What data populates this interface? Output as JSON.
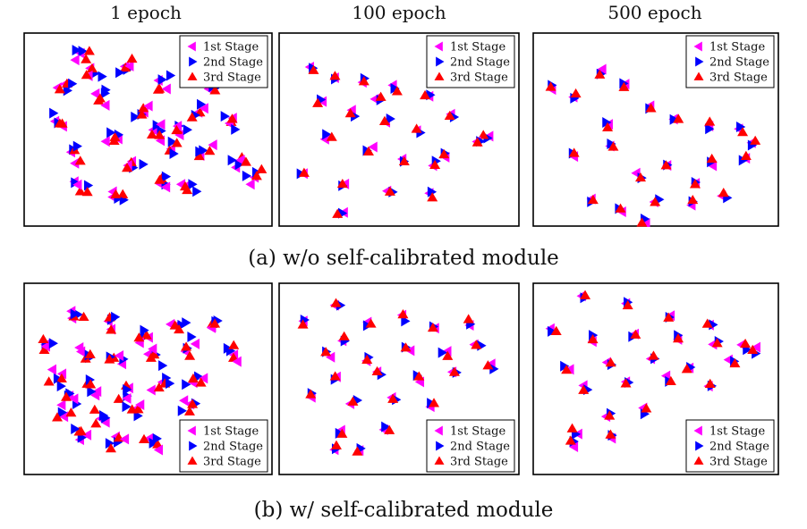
{
  "column_titles": [
    "1 epoch",
    "100 epoch",
    "500 epoch"
  ],
  "captions": {
    "a": "(a) w/o self-calibrated module",
    "b": "(b) w/ self-calibrated module"
  },
  "legend": {
    "stages": [
      "1st Stage",
      "2nd Stage",
      "3rd Stage"
    ],
    "colors": [
      "#ff00ff",
      "#0000ff",
      "#ff0000"
    ],
    "markers": [
      "triangle-left",
      "triangle-right",
      "triangle-up"
    ]
  },
  "chart_data": [
    {
      "type": "scatter",
      "row": "a",
      "epoch": "1 epoch",
      "spread": 6,
      "seed": 11,
      "legend_position": "top-right",
      "clusters": [
        [
          60,
          20
        ],
        [
          110,
          35
        ],
        [
          150,
          55
        ],
        [
          80,
          70
        ],
        [
          130,
          90
        ],
        [
          175,
          110
        ],
        [
          200,
          140
        ],
        [
          240,
          150
        ],
        [
          95,
          120
        ],
        [
          150,
          175
        ],
        [
          55,
          180
        ],
        [
          210,
          60
        ],
        [
          30,
          100
        ],
        [
          45,
          140
        ],
        [
          120,
          150
        ],
        [
          185,
          185
        ],
        [
          70,
          40
        ],
        [
          230,
          100
        ],
        [
          160,
          130
        ],
        [
          100,
          190
        ],
        [
          260,
          165
        ],
        [
          35,
          60
        ],
        [
          140,
          110
        ],
        [
          195,
          85
        ]
      ]
    },
    {
      "type": "scatter",
      "row": "a",
      "epoch": "100 epoch",
      "spread": 4,
      "seed": 23,
      "legend_position": "top-right",
      "clusters": [
        [
          30,
          35
        ],
        [
          60,
          45
        ],
        [
          95,
          50
        ],
        [
          130,
          60
        ],
        [
          170,
          70
        ],
        [
          40,
          75
        ],
        [
          80,
          90
        ],
        [
          120,
          100
        ],
        [
          160,
          110
        ],
        [
          200,
          95
        ],
        [
          50,
          120
        ],
        [
          100,
          135
        ],
        [
          140,
          145
        ],
        [
          180,
          150
        ],
        [
          240,
          120
        ],
        [
          20,
          160
        ],
        [
          70,
          175
        ],
        [
          125,
          185
        ],
        [
          175,
          190
        ],
        [
          65,
          210
        ],
        [
          230,
          125
        ],
        [
          110,
          70
        ],
        [
          190,
          140
        ]
      ]
    },
    {
      "type": "scatter",
      "row": "a",
      "epoch": "500 epoch",
      "spread": 4,
      "seed": 37,
      "legend_position": "top-right",
      "clusters": [
        [
          15,
          60
        ],
        [
          40,
          70
        ],
        [
          70,
          40
        ],
        [
          100,
          55
        ],
        [
          130,
          80
        ],
        [
          160,
          95
        ],
        [
          200,
          105
        ],
        [
          235,
          110
        ],
        [
          250,
          125
        ],
        [
          40,
          140
        ],
        [
          85,
          130
        ],
        [
          115,
          165
        ],
        [
          150,
          150
        ],
        [
          185,
          175
        ],
        [
          60,
          195
        ],
        [
          95,
          210
        ],
        [
          135,
          195
        ],
        [
          175,
          200
        ],
        [
          215,
          190
        ],
        [
          120,
          220
        ],
        [
          240,
          145
        ],
        [
          80,
          105
        ],
        [
          200,
          150
        ]
      ]
    },
    {
      "type": "scatter",
      "row": "b",
      "epoch": "1 epoch",
      "spread": 6,
      "seed": 51,
      "legend_position": "bottom-right",
      "clusters": [
        [
          50,
          30
        ],
        [
          90,
          40
        ],
        [
          130,
          55
        ],
        [
          170,
          50
        ],
        [
          210,
          45
        ],
        [
          20,
          70
        ],
        [
          60,
          80
        ],
        [
          100,
          90
        ],
        [
          140,
          85
        ],
        [
          180,
          70
        ],
        [
          230,
          80
        ],
        [
          30,
          110
        ],
        [
          70,
          120
        ],
        [
          110,
          125
        ],
        [
          150,
          115
        ],
        [
          190,
          110
        ],
        [
          40,
          150
        ],
        [
          80,
          160
        ],
        [
          120,
          150
        ],
        [
          60,
          180
        ],
        [
          100,
          185
        ],
        [
          140,
          190
        ],
        [
          180,
          145
        ],
        [
          45,
          130
        ]
      ]
    },
    {
      "type": "scatter",
      "row": "b",
      "epoch": "100 epoch",
      "spread": 4,
      "seed": 63,
      "legend_position": "bottom-right",
      "clusters": [
        [
          60,
          15
        ],
        [
          20,
          40
        ],
        [
          70,
          60
        ],
        [
          100,
          40
        ],
        [
          140,
          35
        ],
        [
          180,
          45
        ],
        [
          220,
          40
        ],
        [
          50,
          80
        ],
        [
          100,
          85
        ],
        [
          145,
          75
        ],
        [
          190,
          80
        ],
        [
          230,
          70
        ],
        [
          60,
          110
        ],
        [
          110,
          105
        ],
        [
          160,
          110
        ],
        [
          200,
          100
        ],
        [
          245,
          95
        ],
        [
          30,
          130
        ],
        [
          80,
          140
        ],
        [
          130,
          135
        ],
        [
          175,
          140
        ],
        [
          65,
          175
        ],
        [
          120,
          170
        ],
        [
          85,
          200
        ],
        [
          60,
          195
        ]
      ]
    },
    {
      "type": "scatter",
      "row": "b",
      "epoch": "500 epoch",
      "spread": 4,
      "seed": 77,
      "legend_position": "bottom-right",
      "clusters": [
        [
          50,
          10
        ],
        [
          100,
          20
        ],
        [
          150,
          35
        ],
        [
          200,
          40
        ],
        [
          15,
          50
        ],
        [
          60,
          60
        ],
        [
          110,
          55
        ],
        [
          160,
          60
        ],
        [
          205,
          65
        ],
        [
          240,
          70
        ],
        [
          30,
          95
        ],
        [
          80,
          90
        ],
        [
          130,
          85
        ],
        [
          175,
          95
        ],
        [
          225,
          90
        ],
        [
          50,
          120
        ],
        [
          100,
          115
        ],
        [
          150,
          110
        ],
        [
          200,
          115
        ],
        [
          80,
          155
        ],
        [
          120,
          150
        ],
        [
          40,
          175
        ],
        [
          85,
          180
        ],
        [
          35,
          190
        ],
        [
          250,
          75
        ]
      ]
    }
  ]
}
